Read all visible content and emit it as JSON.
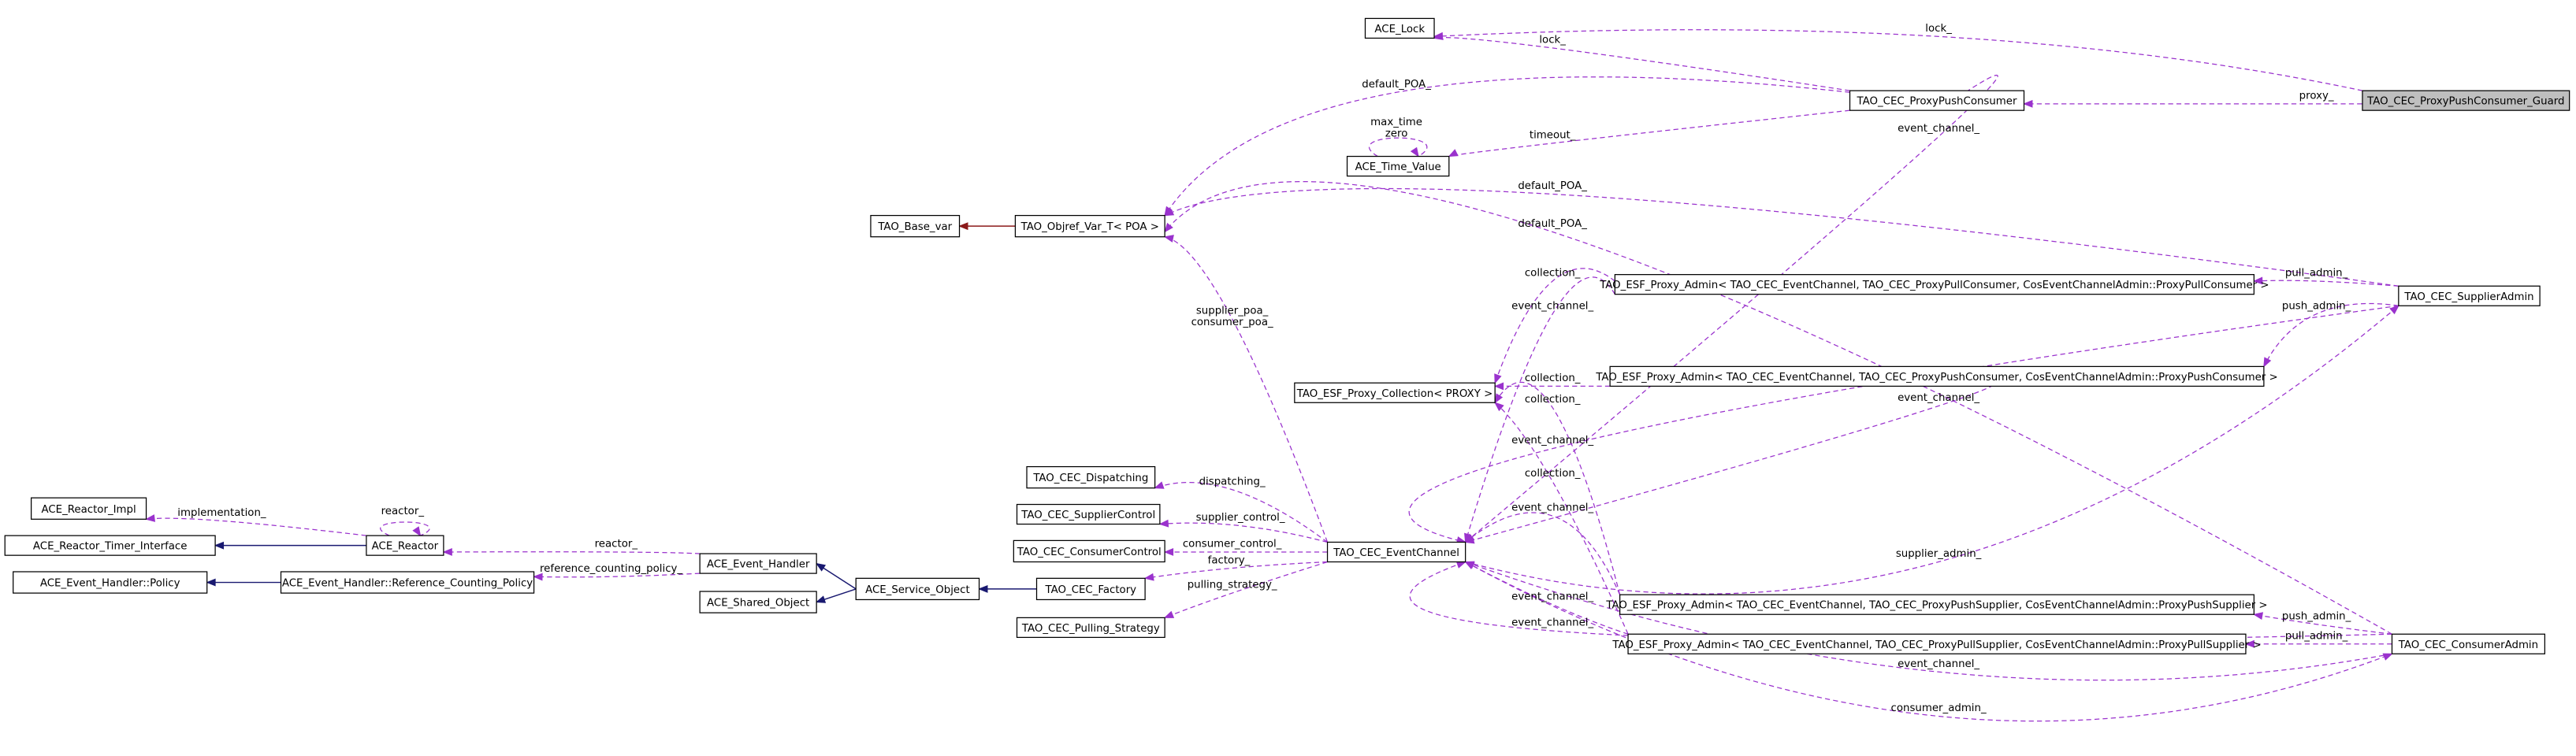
{
  "nodes": [
    {
      "label": "ACE_Lock"
    },
    {
      "label": "TAO_CEC_ProxyPushConsumer_Guard"
    },
    {
      "label": "TAO_CEC_ProxyPushConsumer"
    },
    {
      "label": "ACE_Time_Value"
    },
    {
      "label": "TAO_Base_var"
    },
    {
      "label": "TAO_Objref_Var_T< POA >"
    },
    {
      "label": "TAO_ESF_Proxy_Admin< TAO_CEC_EventChannel, TAO_CEC_ProxyPullConsumer, CosEventChannelAdmin::ProxyPullConsumer >"
    },
    {
      "label": "TAO_CEC_SupplierAdmin"
    },
    {
      "label": "TAO_ESF_Proxy_Admin< TAO_CEC_EventChannel, TAO_CEC_ProxyPushConsumer, CosEventChannelAdmin::ProxyPushConsumer >"
    },
    {
      "label": "TAO_ESF_Proxy_Collection< PROXY >"
    },
    {
      "label": "TAO_CEC_Dispatching"
    },
    {
      "label": "TAO_CEC_SupplierControl"
    },
    {
      "label": "TAO_CEC_ConsumerControl"
    },
    {
      "label": "TAO_CEC_EventChannel"
    },
    {
      "label": "TAO_CEC_Factory"
    },
    {
      "label": "TAO_CEC_Pulling_Strategy"
    },
    {
      "label": "ACE_Reactor_Impl"
    },
    {
      "label": "ACE_Reactor_Timer_Interface"
    },
    {
      "label": "ACE_Reactor"
    },
    {
      "label": "ACE_Event_Handler::Policy"
    },
    {
      "label": "ACE_Event_Handler::Reference_Counting_Policy"
    },
    {
      "label": "ACE_Event_Handler"
    },
    {
      "label": "ACE_Shared_Object"
    },
    {
      "label": "ACE_Service_Object"
    },
    {
      "label": "TAO_ESF_Proxy_Admin< TAO_CEC_EventChannel, TAO_CEC_ProxyPushSupplier, CosEventChannelAdmin::ProxyPushSupplier >"
    },
    {
      "label": "TAO_ESF_Proxy_Admin< TAO_CEC_EventChannel, TAO_CEC_ProxyPullSupplier, CosEventChannelAdmin::ProxyPullSupplier >"
    },
    {
      "label": "TAO_CEC_ConsumerAdmin"
    }
  ],
  "edge_labels": [
    "lock_",
    "lock_",
    "proxy_",
    "default_POA_",
    "timeout_",
    "max_time",
    "zero",
    "event_channel_",
    "default_POA_",
    "default_POA_",
    "supplier_poa_",
    "consumer_poa_",
    "pull_admin_",
    "push_admin_",
    "collection_",
    "collection_",
    "collection_",
    "collection_",
    "event_channel_",
    "event_channel_",
    "event_channel_",
    "event_channel_",
    "event_channel_",
    "event_channel_",
    "event_channel_",
    "dispatching_",
    "supplier_control_",
    "consumer_control_",
    "factory_",
    "pulling_strategy_",
    "supplier_admin_",
    "consumer_admin_",
    "push_admin_",
    "pull_admin_",
    "implementation_",
    "reactor_",
    "reactor_",
    "reference_counting_policy_"
  ]
}
